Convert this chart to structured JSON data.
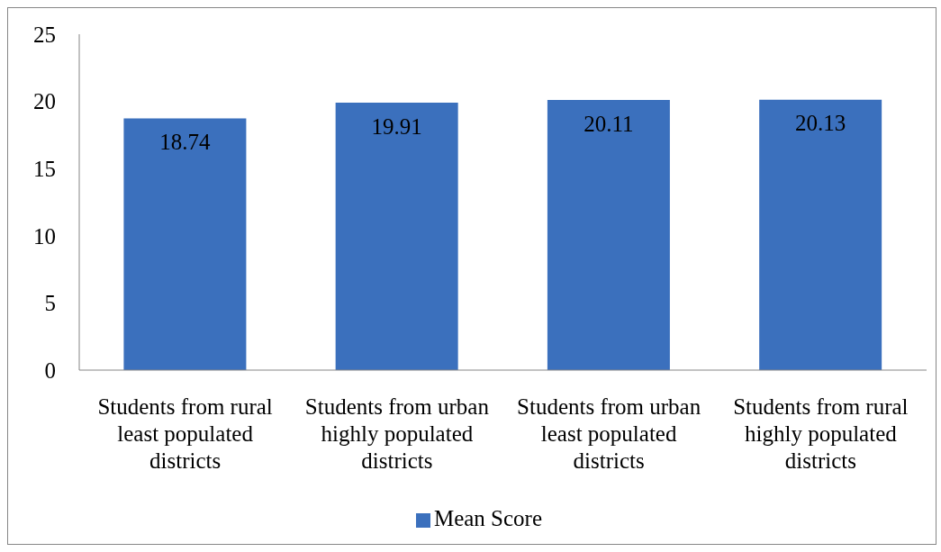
{
  "chart_data": {
    "type": "bar",
    "categories": [
      "Students from rural least populated districts",
      "Students from urban highly populated districts",
      "Students from urban least populated districts",
      "Students from rural highly populated districts"
    ],
    "series": [
      {
        "name": "Mean Score",
        "color": "#3b70bd",
        "values": [
          18.74,
          19.91,
          20.11,
          20.13
        ]
      }
    ],
    "ylim": [
      0,
      25
    ],
    "yticks": [
      0,
      5,
      10,
      15,
      20,
      25
    ],
    "grid": false,
    "legend": "bottom",
    "data_labels": true
  }
}
